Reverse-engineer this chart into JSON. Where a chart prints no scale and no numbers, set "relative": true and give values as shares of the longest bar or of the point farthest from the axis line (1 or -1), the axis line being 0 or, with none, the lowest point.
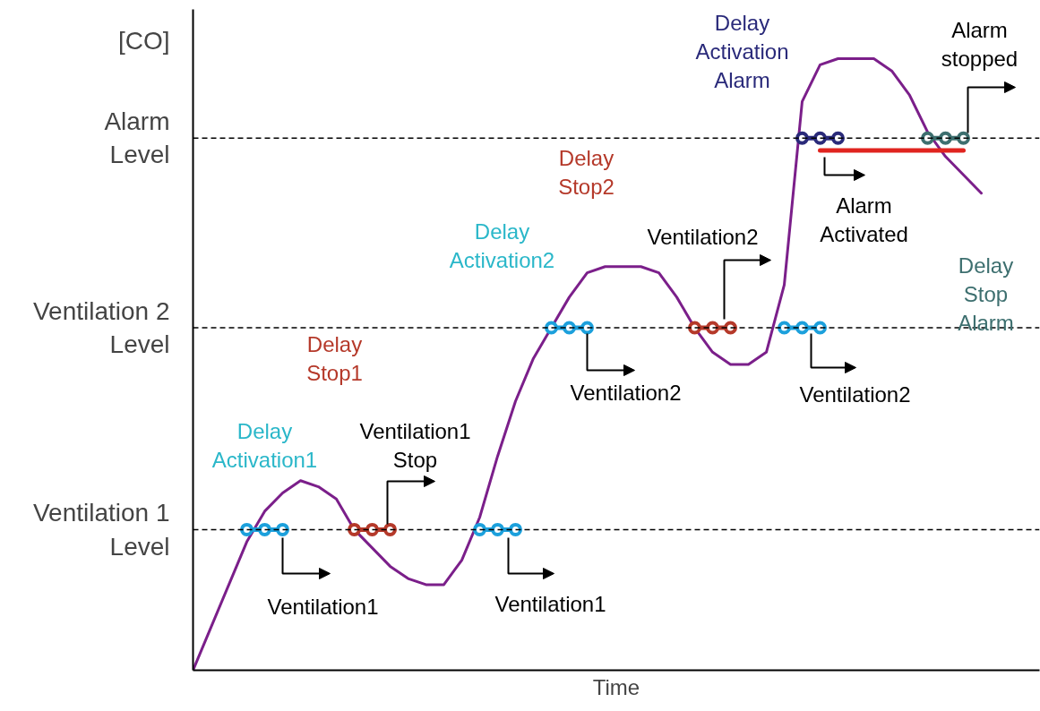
{
  "chart_data": {
    "type": "line",
    "relative": true,
    "xlabel": "Time",
    "ylabel": "[CO]",
    "categories": [
      null,
      null,
      null,
      null,
      null,
      null,
      null,
      null,
      null,
      null,
      null,
      null,
      null,
      null,
      null,
      null,
      null,
      null,
      null,
      null,
      null,
      null,
      null,
      null,
      null,
      null,
      null,
      null,
      null,
      null,
      null,
      null,
      null,
      null,
      null,
      null,
      null,
      null,
      null,
      null,
      null,
      null,
      null,
      null,
      null
    ],
    "series": [
      {
        "color": "#7b1f8a",
        "marker": "none",
        "values": [
          0,
          0.07,
          0.14,
          0.21,
          0.26,
          0.29,
          0.31,
          0.3,
          0.28,
          0.23,
          0.2,
          0.17,
          0.15,
          0.14,
          0.14,
          0.18,
          0.25,
          0.35,
          0.44,
          0.51,
          0.56,
          0.61,
          0.65,
          0.66,
          0.66,
          0.66,
          0.65,
          0.61,
          0.56,
          0.52,
          0.5,
          0.5,
          0.52,
          0.63,
          0.93,
          0.99,
          1.0,
          1.0,
          1.0,
          0.98,
          0.94,
          0.88,
          0.84,
          0.81,
          0.78
        ]
      },
      {
        "type": "line",
        "marker": "circle",
        "color": "#1ca0dc",
        "values": [
          null,
          null,
          null,
          0.23,
          0.23,
          0.23,
          null,
          null,
          null,
          null,
          null,
          null,
          null,
          null,
          null,
          null,
          null,
          null,
          null,
          null,
          null,
          null,
          null,
          null,
          null,
          null,
          null,
          null,
          null,
          null,
          null,
          null,
          null,
          null,
          null,
          null,
          null,
          null,
          null,
          null,
          null,
          null,
          null,
          null,
          null
        ]
      },
      {
        "type": "line",
        "marker": "circle",
        "color": "#b5392a",
        "values": [
          null,
          null,
          null,
          null,
          null,
          null,
          null,
          null,
          null,
          0.23,
          0.23,
          0.23,
          null,
          null,
          null,
          null,
          null,
          null,
          null,
          null,
          null,
          null,
          null,
          null,
          null,
          null,
          null,
          null,
          null,
          null,
          null,
          null,
          null,
          null,
          null,
          null,
          null,
          null,
          null,
          null,
          null,
          null,
          null,
          null,
          null
        ]
      },
      {
        "type": "line",
        "marker": "circle",
        "color": "#1ca0dc",
        "values": [
          null,
          null,
          null,
          null,
          null,
          null,
          null,
          null,
          null,
          null,
          null,
          null,
          null,
          null,
          null,
          null,
          0.23,
          0.23,
          0.23,
          null,
          null,
          null,
          null,
          null,
          null,
          null,
          null,
          null,
          null,
          null,
          null,
          null,
          null,
          null,
          null,
          null,
          null,
          null,
          null,
          null,
          null,
          null,
          null,
          null,
          null
        ]
      },
      {
        "type": "line",
        "marker": "circle",
        "color": "#1ca0dc",
        "values": [
          null,
          null,
          null,
          null,
          null,
          null,
          null,
          null,
          null,
          null,
          null,
          null,
          null,
          null,
          null,
          null,
          null,
          null,
          null,
          null,
          0.56,
          0.56,
          0.56,
          null,
          null,
          null,
          null,
          null,
          null,
          null,
          null,
          null,
          null,
          null,
          null,
          null,
          null,
          null,
          null,
          null,
          null,
          null,
          null,
          null,
          null
        ]
      },
      {
        "type": "line",
        "marker": "circle",
        "color": "#b5392a",
        "values": [
          null,
          null,
          null,
          null,
          null,
          null,
          null,
          null,
          null,
          null,
          null,
          null,
          null,
          null,
          null,
          null,
          null,
          null,
          null,
          null,
          null,
          null,
          null,
          null,
          null,
          null,
          null,
          null,
          0.56,
          0.56,
          0.56,
          null,
          null,
          null,
          null,
          null,
          null,
          null,
          null,
          null,
          null,
          null,
          null,
          null,
          null
        ]
      },
      {
        "type": "line",
        "marker": "circle",
        "color": "#1ca0dc",
        "values": [
          null,
          null,
          null,
          null,
          null,
          null,
          null,
          null,
          null,
          null,
          null,
          null,
          null,
          null,
          null,
          null,
          null,
          null,
          null,
          null,
          null,
          null,
          null,
          null,
          null,
          null,
          null,
          null,
          null,
          null,
          null,
          null,
          null,
          0.56,
          0.56,
          0.56,
          null,
          null,
          null,
          null,
          null,
          null,
          null,
          null,
          null
        ]
      },
      {
        "type": "line",
        "marker": "none",
        "color": "#e0241f",
        "values": [
          null,
          null,
          null,
          null,
          null,
          null,
          null,
          null,
          null,
          null,
          null,
          null,
          null,
          null,
          null,
          null,
          null,
          null,
          null,
          null,
          null,
          null,
          null,
          null,
          null,
          null,
          null,
          null,
          null,
          null,
          null,
          null,
          null,
          null,
          null,
          0.85,
          0.85,
          0.85,
          0.85,
          0.85,
          0.85,
          0.85,
          0.85,
          0.85,
          null
        ]
      },
      {
        "type": "line",
        "marker": "circle",
        "color": "#2a2a7a",
        "values": [
          null,
          null,
          null,
          null,
          null,
          null,
          null,
          null,
          null,
          null,
          null,
          null,
          null,
          null,
          null,
          null,
          null,
          null,
          null,
          null,
          null,
          null,
          null,
          null,
          null,
          null,
          null,
          null,
          null,
          null,
          null,
          null,
          null,
          null,
          0.87,
          0.87,
          0.87,
          null,
          null,
          null,
          null,
          null,
          null,
          null,
          null
        ]
      },
      {
        "type": "line",
        "marker": "circle",
        "color": "#3d6f6f",
        "values": [
          null,
          null,
          null,
          null,
          null,
          null,
          null,
          null,
          null,
          null,
          null,
          null,
          null,
          null,
          null,
          null,
          null,
          null,
          null,
          null,
          null,
          null,
          null,
          null,
          null,
          null,
          null,
          null,
          null,
          null,
          null,
          null,
          null,
          null,
          null,
          null,
          null,
          null,
          null,
          null,
          null,
          0.87,
          0.87,
          0.87,
          null
        ]
      }
    ],
    "ref_lines": [
      {
        "axis": "y",
        "value": 0.23,
        "label": "Ventilation 1\nLevel",
        "color": "#000000",
        "line_style": "dashed"
      },
      {
        "axis": "y",
        "value": 0.56,
        "label": "Ventilation 2\nLevel",
        "color": "#000000",
        "line_style": "dashed"
      },
      {
        "axis": "y",
        "value": 0.87,
        "label": "Alarm\nLevel",
        "color": "#000000",
        "line_style": "dashed"
      }
    ],
    "annotations": [
      "Delay\nActivation1",
      "Delay\nStop1",
      "Ventilation1\nStop",
      "Ventilation1",
      "Ventilation1",
      "Delay\nActivation2",
      "Delay\nStop2",
      "Ventilation2",
      "Ventilation2",
      "Ventilation2",
      "Delay\nActivation\nAlarm",
      "Alarm\nActivated",
      "Alarm\nstopped",
      "Delay\nStop\nAlarm"
    ],
    "grid": false
  }
}
